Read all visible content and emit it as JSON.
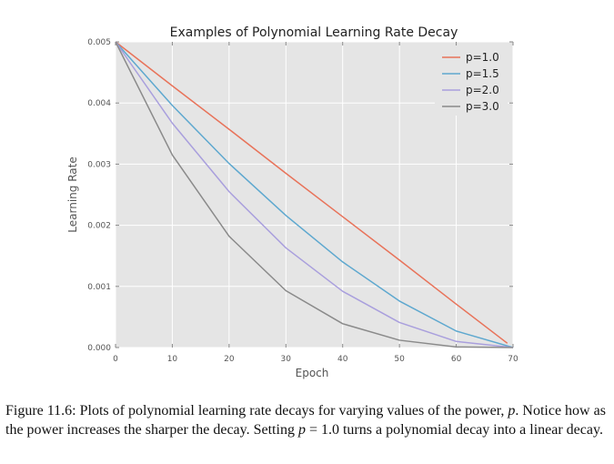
{
  "chart_data": {
    "type": "line",
    "title": "Examples of Polynomial Learning Rate Decay",
    "xlabel": "Epoch",
    "ylabel": "Learning Rate",
    "xlim": [
      0,
      70
    ],
    "ylim": [
      0,
      0.005
    ],
    "x_ticks": [
      0,
      10,
      20,
      30,
      40,
      50,
      60,
      70
    ],
    "y_ticks": [
      "0.000",
      "0.001",
      "0.002",
      "0.003",
      "0.004",
      "0.005"
    ],
    "grid": true,
    "legend_position": "top-right",
    "series": [
      {
        "name": "p=1.0",
        "color": "#e8735a",
        "x": [
          0,
          10,
          20,
          30,
          40,
          50,
          60,
          69
        ],
        "y": [
          0.005,
          0.00428,
          0.00357,
          0.00285,
          0.00214,
          0.00143,
          0.00071,
          7e-05
        ]
      },
      {
        "name": "p=1.5",
        "color": "#5ea8cf",
        "x": [
          0,
          10,
          20,
          30,
          40,
          50,
          60,
          70
        ],
        "y": [
          0.005,
          0.00396,
          0.00301,
          0.00216,
          0.0014,
          0.00076,
          0.00027,
          0.0
        ]
      },
      {
        "name": "p=2.0",
        "color": "#a99fdd",
        "x": [
          0,
          10,
          20,
          30,
          40,
          50,
          60,
          70
        ],
        "y": [
          0.005,
          0.00367,
          0.00255,
          0.00163,
          0.00092,
          0.00041,
          0.0001,
          0.0
        ]
      },
      {
        "name": "p=3.0",
        "color": "#8a8a8a",
        "x": [
          0,
          10,
          20,
          30,
          40,
          50,
          60,
          70
        ],
        "y": [
          0.005,
          0.00315,
          0.00182,
          0.00093,
          0.00039,
          0.00012,
          1e-05,
          0.0
        ]
      }
    ]
  },
  "caption": {
    "part1": "Figure 11.6: Plots of polynomial learning rate decays for varying values of the power, ",
    "p1": "p",
    "part2": ". Notice how as the power increases the sharper the decay. Setting ",
    "p2": "p",
    "part3": " = 1.0 turns a polynomial decay into a linear decay."
  }
}
